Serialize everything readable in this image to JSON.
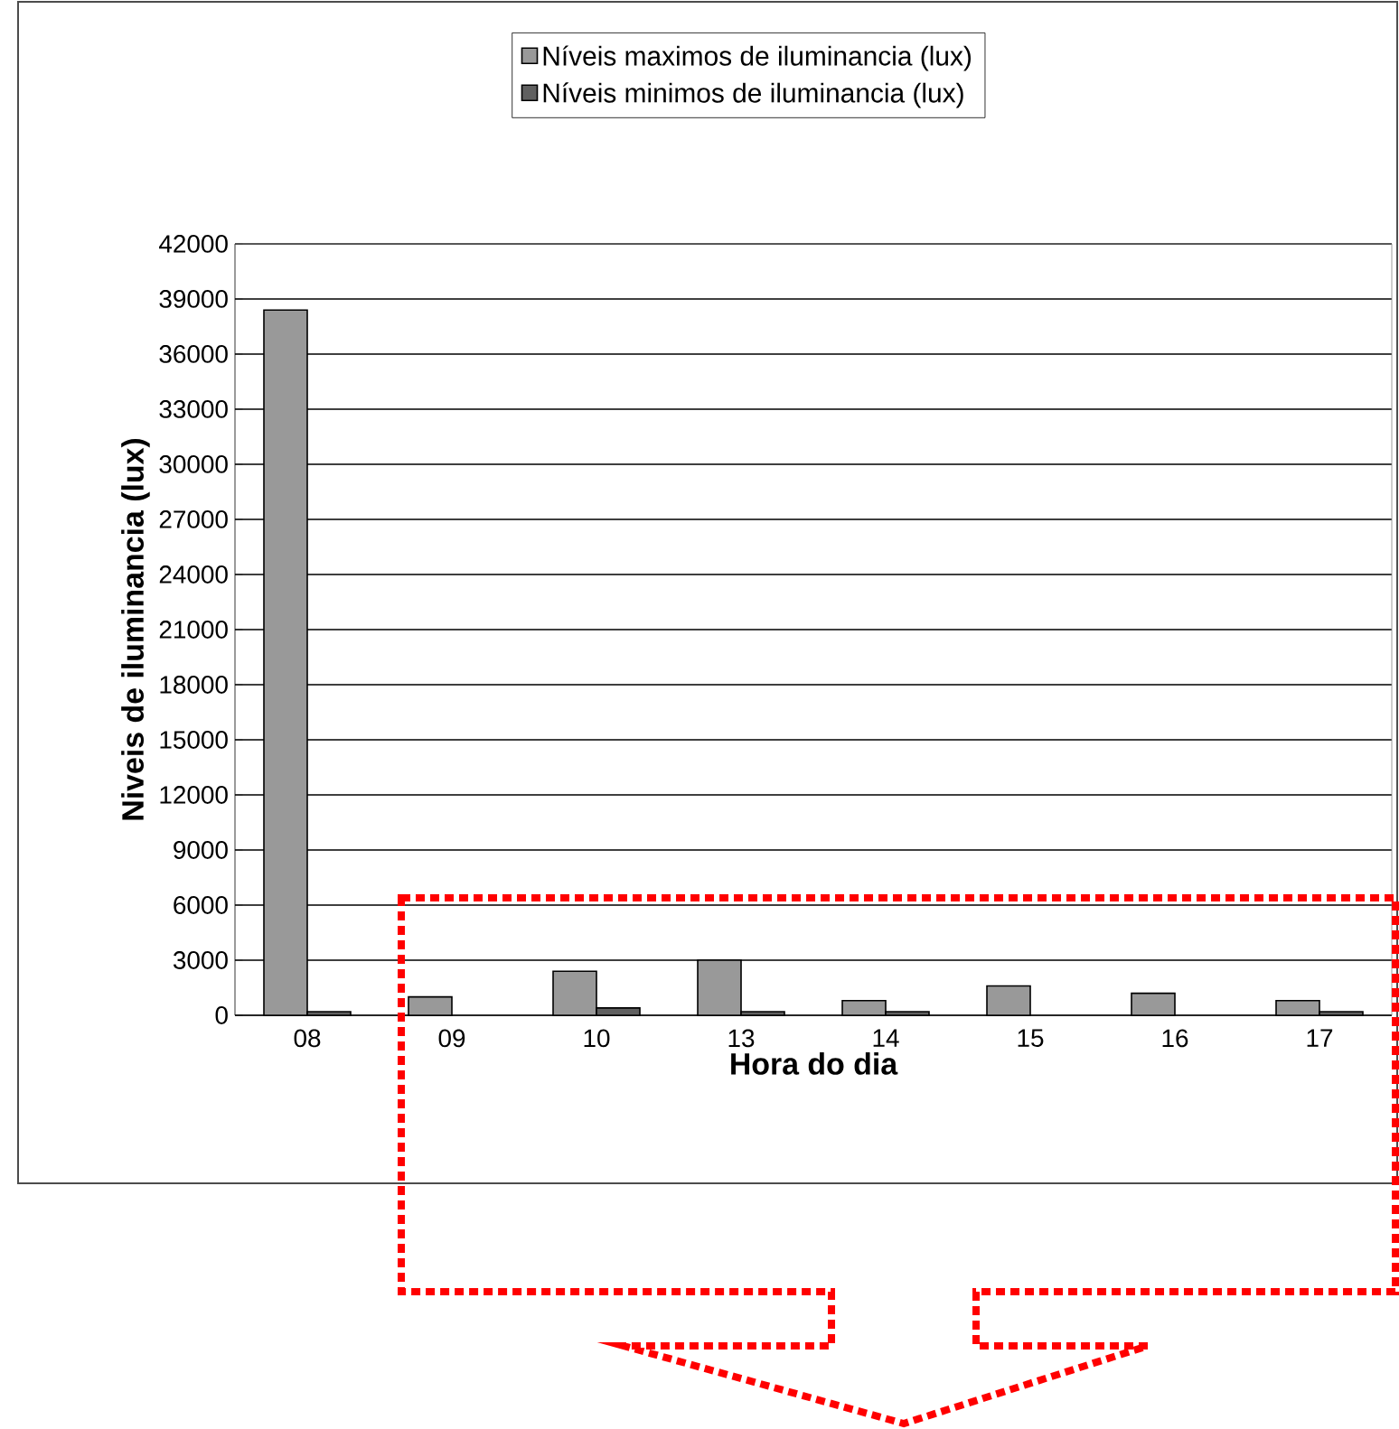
{
  "chart_data": {
    "type": "bar",
    "xlabel": "Hora do dia",
    "ylabel": "Niveis de iluminancia (lux)",
    "categories": [
      "08",
      "09",
      "10",
      "13",
      "14",
      "15",
      "16",
      "17"
    ],
    "series": [
      {
        "name": "Níveis maximos de iluminancia (lux)",
        "color": "#999999",
        "values": [
          38400,
          1000,
          2400,
          3000,
          800,
          1600,
          1200,
          800
        ]
      },
      {
        "name": "Níveis minimos de iluminancia (lux)",
        "color": "#606060",
        "values": [
          200,
          null,
          400,
          200,
          200,
          null,
          null,
          200
        ]
      }
    ],
    "ylim": [
      0,
      42000
    ],
    "yticks": [
      0,
      3000,
      6000,
      9000,
      12000,
      15000,
      18000,
      21000,
      24000,
      27000,
      30000,
      33000,
      36000,
      39000,
      42000
    ],
    "grid": "y",
    "legend": "top"
  }
}
